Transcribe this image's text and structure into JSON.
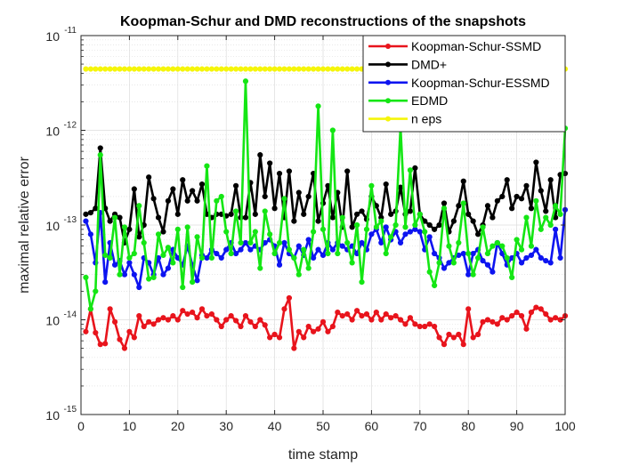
{
  "chart_data": {
    "type": "line",
    "title": "Koopman-Schur and DMD reconstructions of the snapshots",
    "xlabel": "time stamp",
    "ylabel": "maximal relative error",
    "xlim": [
      0,
      100
    ],
    "ylim": [
      1e-15,
      1e-11
    ],
    "yscale": "log",
    "grid": true,
    "minor_grid": true,
    "legend_location": "top-right",
    "x_ticks": [
      0,
      10,
      20,
      30,
      40,
      50,
      60,
      70,
      80,
      90,
      100
    ],
    "y_ticks": [
      {
        "value": 1e-15,
        "label": "10",
        "exp": "-15"
      },
      {
        "value": 1e-14,
        "label": "10",
        "exp": "-14"
      },
      {
        "value": 1e-13,
        "label": "10",
        "exp": "-13"
      },
      {
        "value": 1e-12,
        "label": "10",
        "exp": "-12"
      },
      {
        "value": 1e-11,
        "label": "10",
        "exp": "-11"
      }
    ],
    "x": [
      1,
      2,
      3,
      4,
      5,
      6,
      7,
      8,
      9,
      10,
      11,
      12,
      13,
      14,
      15,
      16,
      17,
      18,
      19,
      20,
      21,
      22,
      23,
      24,
      25,
      26,
      27,
      28,
      29,
      30,
      31,
      32,
      33,
      34,
      35,
      36,
      37,
      38,
      39,
      40,
      41,
      42,
      43,
      44,
      45,
      46,
      47,
      48,
      49,
      50,
      51,
      52,
      53,
      54,
      55,
      56,
      57,
      58,
      59,
      60,
      61,
      62,
      63,
      64,
      65,
      66,
      67,
      68,
      69,
      70,
      71,
      72,
      73,
      74,
      75,
      76,
      77,
      78,
      79,
      80,
      81,
      82,
      83,
      84,
      85,
      86,
      87,
      88,
      89,
      90,
      91,
      92,
      93,
      94,
      95,
      96,
      97,
      98,
      99,
      100
    ],
    "series": [
      {
        "name": "Koopman-Schur-SSMD",
        "color": "#e8141c",
        "values": [
          7.5e-15,
          1.3e-14,
          7.3e-15,
          5.5e-15,
          5.6e-15,
          1.3e-14,
          9.5e-15,
          6.2e-15,
          5e-15,
          7.5e-15,
          6.5e-15,
          1.1e-14,
          8.5e-15,
          9.5e-15,
          9e-15,
          1e-14,
          1.05e-14,
          1e-14,
          1.1e-14,
          1e-14,
          1.25e-14,
          1.15e-14,
          1.2e-14,
          1.05e-14,
          1.3e-14,
          1.1e-14,
          1.15e-14,
          1e-14,
          8.5e-15,
          1e-14,
          1.1e-14,
          9.8e-15,
          8.5e-15,
          1.1e-14,
          9.5e-15,
          8.5e-15,
          1e-14,
          8.8e-15,
          6.5e-15,
          7e-15,
          6.5e-15,
          1.3e-14,
          1.7e-14,
          5e-15,
          7.5e-15,
          6.5e-15,
          8.5e-15,
          7.5e-15,
          8e-15,
          9.5e-15,
          7.5e-15,
          8.5e-15,
          1.2e-14,
          1.1e-14,
          1.15e-14,
          1e-14,
          1.25e-14,
          1.1e-14,
          1.15e-14,
          1e-14,
          1.2e-14,
          1e-14,
          1.15e-14,
          1.05e-14,
          1.1e-14,
          1e-14,
          9e-15,
          1.05e-14,
          9e-15,
          8.5e-15,
          8.5e-15,
          9e-15,
          8.5e-15,
          6.5e-15,
          5.5e-15,
          7e-15,
          6.5e-15,
          7e-15,
          5.5e-15,
          1.3e-14,
          6.5e-15,
          7e-15,
          9.5e-15,
          1e-14,
          9.5e-15,
          9e-15,
          1.05e-14,
          1e-14,
          1.1e-14,
          1.2e-14,
          1.1e-14,
          8e-15,
          1.2e-14,
          1.35e-14,
          1.3e-14,
          1.15e-14,
          1e-14,
          1.05e-14,
          1e-14,
          1.1e-14
        ]
      },
      {
        "name": "DMD+",
        "color": "#000000",
        "values": [
          1.3e-13,
          1.35e-13,
          1.5e-13,
          6.5e-13,
          1.5e-13,
          1.1e-13,
          1.3e-13,
          1.2e-13,
          6.5e-14,
          9e-14,
          2.4e-13,
          7.5e-14,
          1e-13,
          3.2e-13,
          1.9e-13,
          1.2e-13,
          8.5e-14,
          1.8e-13,
          2.4e-13,
          1.3e-13,
          3e-13,
          1.8e-13,
          2.3e-13,
          1.8e-13,
          2.7e-13,
          1.3e-13,
          1.2e-13,
          1.3e-13,
          1.3e-13,
          1.25e-13,
          1.3e-13,
          2.6e-13,
          1.2e-13,
          1.2e-13,
          2.8e-13,
          1.3e-13,
          5.5e-13,
          2e-13,
          4.5e-13,
          1.5e-13,
          3.5e-13,
          1.2e-13,
          3.7e-13,
          1.1e-13,
          2.2e-13,
          1.3e-13,
          2e-13,
          3.5e-13,
          1.1e-13,
          1.7e-13,
          2.6e-13,
          1.2e-13,
          2.2e-13,
          9.5e-14,
          3.7e-13,
          9.5e-14,
          1.3e-13,
          1.4e-13,
          1.15e-13,
          2e-13,
          1.6e-13,
          1.2e-13,
          2.7e-13,
          1.3e-13,
          1.4e-13,
          2.5e-13,
          1.3e-13,
          1.4e-13,
          4e-13,
          1.3e-13,
          1.1e-13,
          1e-13,
          9e-14,
          1e-13,
          1.7e-13,
          8.5e-14,
          1.1e-13,
          1.6e-13,
          2.9e-13,
          1.3e-13,
          1.1e-13,
          8e-14,
          1e-13,
          1.6e-13,
          1.2e-13,
          1.8e-13,
          2e-13,
          3e-13,
          1.5e-13,
          2e-13,
          1.9e-13,
          2.6e-13,
          1.5e-13,
          4.6e-13,
          2.3e-13,
          1.4e-13,
          3e-13,
          1.2e-13,
          3.4e-13,
          3.5e-13
        ]
      },
      {
        "name": "Koopman-Schur-ESSMD",
        "color": "#0d14f0",
        "values": [
          1.1e-13,
          8e-14,
          4e-14,
          1.35e-13,
          2.5e-14,
          6.5e-14,
          3.8e-14,
          4.2e-14,
          3e-14,
          4e-14,
          3e-14,
          2.2e-14,
          4.5e-14,
          4e-14,
          3e-14,
          4.5e-14,
          3e-14,
          3.5e-14,
          5.5e-14,
          4.5e-14,
          3.8e-14,
          6e-14,
          3.8e-14,
          2.6e-14,
          4.8e-14,
          4.5e-14,
          5.5e-14,
          5e-14,
          4.5e-14,
          5.5e-14,
          6.5e-14,
          5e-14,
          5.5e-14,
          6.5e-14,
          5.5e-14,
          6e-14,
          5.5e-14,
          6.5e-14,
          7e-14,
          6e-14,
          3.8e-14,
          6.5e-14,
          5e-14,
          4.5e-14,
          6e-14,
          4.8e-14,
          7e-14,
          4.5e-14,
          5.5e-14,
          4.8e-14,
          6.5e-14,
          5.5e-14,
          6.5e-14,
          6e-14,
          5.5e-14,
          6e-14,
          5e-14,
          6.5e-14,
          5.5e-14,
          8e-14,
          9e-14,
          6.5e-14,
          9.5e-14,
          7e-14,
          8.5e-14,
          6.5e-14,
          8e-14,
          8.5e-14,
          9e-14,
          8.5e-14,
          5.5e-14,
          7.5e-14,
          5e-14,
          4.5e-14,
          3.5e-14,
          4e-14,
          4.5e-14,
          4.8e-14,
          5e-14,
          3e-14,
          5e-14,
          5.5e-14,
          4.2e-14,
          3.8e-14,
          3.2e-14,
          6.5e-14,
          5e-14,
          3.8e-14,
          4.5e-14,
          5e-14,
          4e-14,
          4.5e-14,
          4.8e-14,
          5.5e-14,
          4.5e-14,
          4.2e-14,
          4e-14,
          9e-14,
          4.5e-14,
          1.45e-13
        ]
      },
      {
        "name": "EDMD",
        "color": "#14e614",
        "values": [
          2.8e-14,
          1.3e-14,
          2e-14,
          5.5e-13,
          4.8e-14,
          4.5e-14,
          1.2e-13,
          3e-14,
          9.5e-14,
          4.5e-14,
          5e-14,
          1.6e-13,
          6.5e-14,
          2.7e-14,
          2.8e-14,
          8e-14,
          4.8e-14,
          5.8e-14,
          4e-14,
          9e-14,
          2.2e-14,
          9.5e-14,
          2.5e-14,
          7.5e-14,
          4.5e-14,
          4.2e-13,
          4.5e-14,
          1.8e-13,
          2e-13,
          8.5e-14,
          5e-14,
          1.4e-13,
          6.5e-14,
          3.3e-12,
          6.5e-14,
          8.5e-14,
          3.5e-14,
          1.4e-13,
          8e-14,
          5e-14,
          6.5e-14,
          1.9e-13,
          5.5e-14,
          4.5e-14,
          3e-14,
          5.5e-14,
          3.5e-14,
          8.5e-14,
          1.8e-12,
          9e-14,
          5e-14,
          1e-12,
          5e-14,
          1.2e-13,
          6.5e-14,
          4e-14,
          1e-13,
          2.5e-14,
          9e-14,
          2.6e-13,
          9.5e-14,
          1.1e-13,
          5e-14,
          7.5e-14,
          1e-13,
          1.1e-12,
          9.5e-14,
          3.8e-13,
          1e-13,
          1.3e-13,
          8.5e-14,
          3.2e-14,
          2.3e-14,
          4e-14,
          1.5e-13,
          6e-14,
          4e-14,
          6.5e-14,
          1.7e-13,
          5e-14,
          3e-14,
          4.5e-14,
          9.5e-14,
          5e-14,
          6e-14,
          6.5e-14,
          6e-14,
          4.5e-14,
          2.8e-14,
          7e-14,
          5.5e-14,
          1.2e-13,
          6e-14,
          1.8e-13,
          9e-14,
          1.2e-13,
          1e-13,
          1.6e-13,
          1.3e-13,
          1.05e-12
        ]
      },
      {
        "name": "n eps",
        "color": "#f5f50a",
        "constant": 4.44e-12
      }
    ]
  }
}
